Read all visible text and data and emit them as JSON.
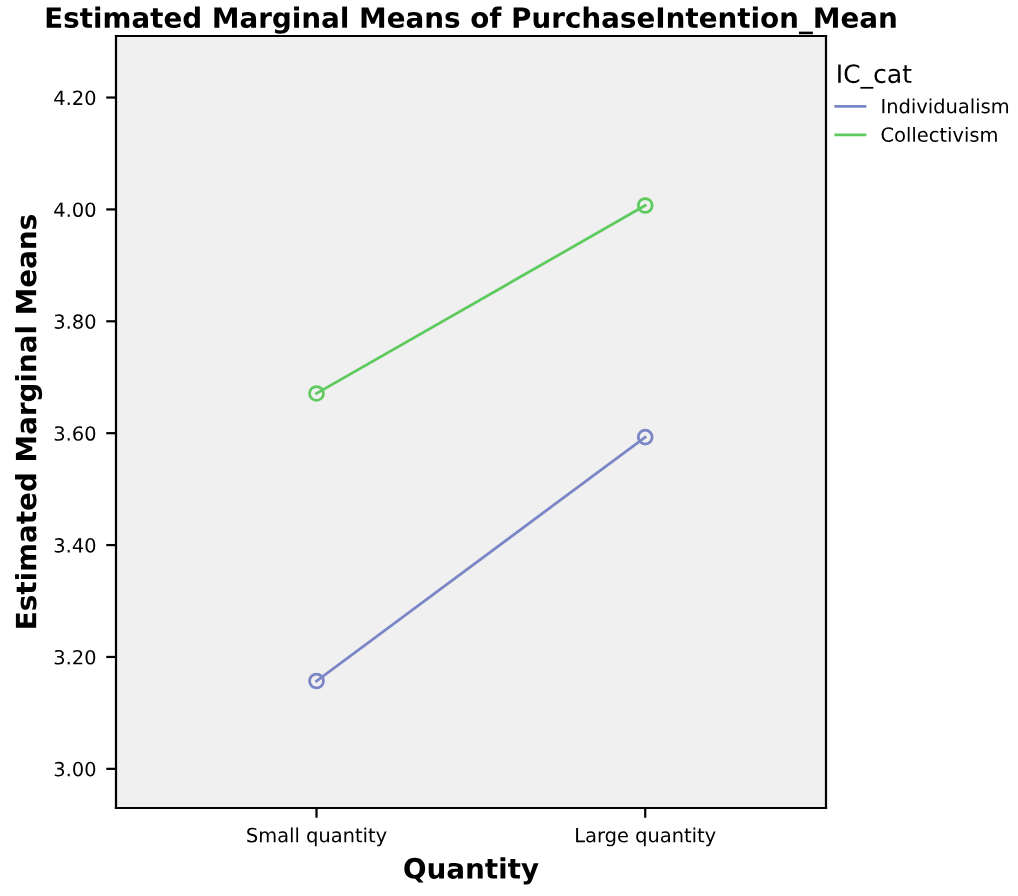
{
  "chart_data": {
    "type": "line",
    "title": "Estimated Marginal Means of PurchaseIntention_Mean",
    "xlabel": "Quantity",
    "ylabel": "Estimated Marginal Means",
    "legend_title": "IC_cat",
    "categories": [
      "Small quantity",
      "Large quantity"
    ],
    "series": [
      {
        "name": "Individualism",
        "color": "#7b86c6",
        "values": [
          3.157,
          3.593
        ]
      },
      {
        "name": "Collectivism",
        "color": "#5fcb5f",
        "values": [
          3.671,
          4.007
        ]
      }
    ],
    "ylim": [
      2.93,
      4.31
    ],
    "yticks": [
      {
        "value": 3.0,
        "label": "3.00"
      },
      {
        "value": 3.2,
        "label": "3.20"
      },
      {
        "value": 3.4,
        "label": "3.40"
      },
      {
        "value": 3.6,
        "label": "3.60"
      },
      {
        "value": 3.8,
        "label": "3.80"
      },
      {
        "value": 4.0,
        "label": "4.00"
      },
      {
        "value": 4.2,
        "label": "4.20"
      }
    ],
    "marker": "circle",
    "line_style": "solid",
    "legend": "top right",
    "grid": false
  }
}
